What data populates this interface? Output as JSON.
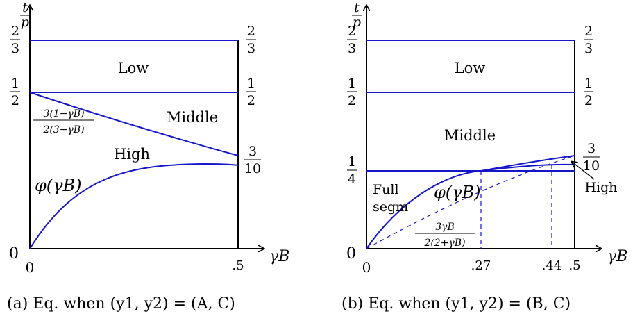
{
  "panel_a": {
    "ylabel_num": "t",
    "ylabel_den": "p",
    "regions": {
      "low": "Low",
      "middle": "Middle",
      "high": "High"
    },
    "curve_label": "φ(γB)",
    "formula": {
      "num": "3(1−γB)",
      "den": "2(3−γB)"
    },
    "left_ticks": [
      {
        "num": "2",
        "den": "3"
      },
      {
        "num": "1",
        "den": "2"
      }
    ],
    "right_ticks": [
      {
        "num": "2",
        "den": "3"
      },
      {
        "num": "1",
        "den": "2"
      },
      {
        "num": "3",
        "den": "10"
      }
    ],
    "origin": "0",
    "x_ticks": [
      "0",
      ".5"
    ],
    "xlabel": "γB",
    "caption": "(a) Eq. when (y1, y2) = (A, C)"
  },
  "panel_b": {
    "ylabel_num": "t",
    "ylabel_den": "p",
    "regions": {
      "low": "Low",
      "middle": "Middle",
      "high": "High",
      "full_1": "Full",
      "full_2": "segm"
    },
    "curve_label": "φ(γB)",
    "formula": {
      "num": "3γB",
      "den": "2(2+γB)"
    },
    "left_ticks": [
      {
        "num": "2",
        "den": "3"
      },
      {
        "num": "1",
        "den": "2"
      },
      {
        "num": "1",
        "den": "4"
      }
    ],
    "right_ticks": [
      {
        "num": "2",
        "den": "3"
      },
      {
        "num": "1",
        "den": "2"
      },
      {
        "num": "3",
        "den": "10"
      }
    ],
    "origin": "0",
    "x_ticks": [
      "0",
      ".27",
      ".44",
      ".5"
    ],
    "xlabel": "γB",
    "caption": "(b) Eq. when (y1, y2) = (B, C)"
  },
  "colors": {
    "lines": "#1515c8",
    "axes": "#000000"
  }
}
